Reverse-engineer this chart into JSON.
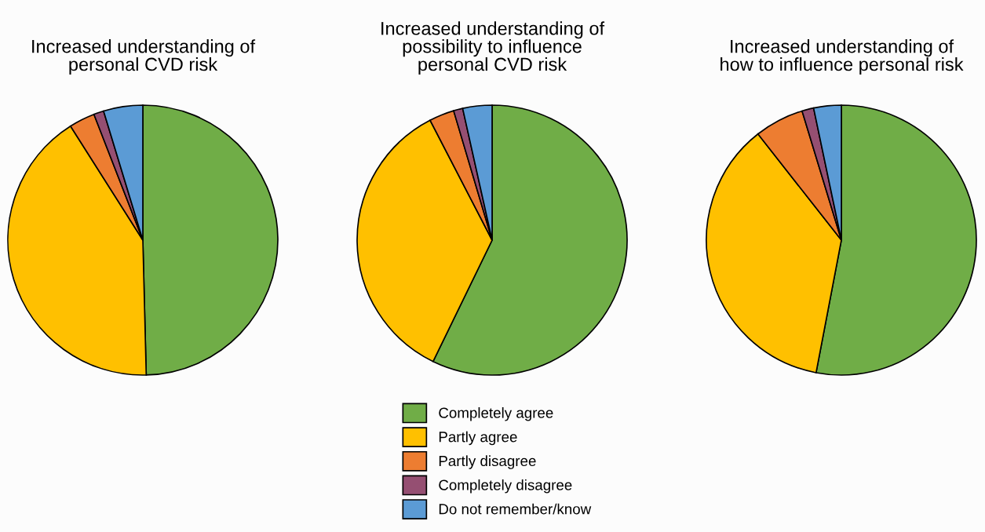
{
  "chart_data": [
    {
      "type": "pie",
      "title": "Increased understanding of\npersonal CVD risk",
      "categories": [
        "Completely agree",
        "Partly agree",
        "Partly disagree",
        "Completely disagree",
        "Do not remember/know"
      ],
      "values": [
        49.6,
        41.4,
        3.1,
        1.2,
        4.7
      ],
      "colors": [
        "#70ad47",
        "#ffc000",
        "#ed7d31",
        "#954f72",
        "#5b9bd5"
      ],
      "legend": "bottom"
    },
    {
      "type": "pie",
      "title": "Increased understanding of\npossibility to influence\npersonal CVD risk",
      "categories": [
        null,
        null,
        null,
        null,
        null
      ],
      "values": [
        57.2,
        35.2,
        3.0,
        1.1,
        3.5
      ],
      "colors": [
        "#70ad47",
        "#ffc000",
        "#ed7d31",
        "#954f72",
        "#5b9bd5"
      ]
    },
    {
      "type": "pie",
      "title": "Increased understanding of\nhow to influence personal risk",
      "categories": [
        null,
        null,
        null,
        null,
        null
      ],
      "values": [
        53.0,
        36.4,
        5.9,
        1.4,
        3.3
      ],
      "colors": [
        "#70ad47",
        "#ffc000",
        "#ed7d31",
        "#954f72",
        "#5b9bd5"
      ]
    }
  ]
}
